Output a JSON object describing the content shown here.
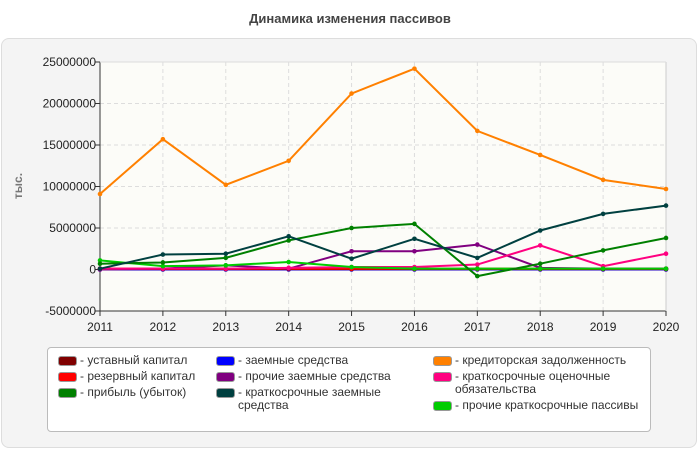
{
  "chart_data": {
    "type": "line",
    "title": "Динамика изменения пассивов",
    "ylabel": "тыс.",
    "xlabel": "",
    "x": [
      2011,
      2012,
      2013,
      2014,
      2015,
      2016,
      2017,
      2018,
      2019,
      2020
    ],
    "ylim": [
      -5000000,
      25000000
    ],
    "yticks": [
      "-5000000",
      "0",
      "5000000",
      "10000000",
      "15000000",
      "20000000",
      "25000000"
    ],
    "ytick_values": [
      -5000000,
      0,
      5000000,
      10000000,
      15000000,
      20000000,
      25000000
    ],
    "xticks": [
      "2011",
      "2012",
      "2013",
      "2014",
      "2015",
      "2016",
      "2017",
      "2018",
      "2019",
      "2020"
    ],
    "grid": true,
    "legend_placement": "bottom",
    "series": [
      {
        "name": "- уставный капитал",
        "color": "#800000",
        "values": [
          50000,
          50000,
          50000,
          50000,
          50000,
          50000,
          50000,
          50000,
          50000,
          50000
        ]
      },
      {
        "name": "- резервный капитал",
        "color": "#ff0000",
        "values": [
          100000,
          100000,
          100000,
          100000,
          100000,
          100000,
          100000,
          100000,
          100000,
          100000
        ]
      },
      {
        "name": "- прибыль (убыток)",
        "color": "#008000",
        "values": [
          700000,
          850000,
          1400000,
          3500000,
          5000000,
          5500000,
          -800000,
          700000,
          2300000,
          3800000
        ]
      },
      {
        "name": "- заемные средства",
        "color": "#0000ff",
        "values": [
          0,
          0,
          0,
          0,
          0,
          0,
          0,
          0,
          0,
          0
        ]
      },
      {
        "name": "- прочие заемные средства",
        "color": "#800080",
        "values": [
          0,
          100000,
          500000,
          100000,
          2200000,
          2200000,
          3000000,
          200000,
          100000,
          100000
        ]
      },
      {
        "name": "- краткосрочные заемные средства",
        "color": "#004040",
        "values": [
          100000,
          1800000,
          1900000,
          4000000,
          1300000,
          3700000,
          1400000,
          4700000,
          6700000,
          7700000
        ]
      },
      {
        "name": "- кредиторская задолженность",
        "color": "#ff8000",
        "values": [
          9100000,
          15700000,
          10200000,
          13100000,
          21200000,
          24200000,
          16700000,
          13800000,
          10800000,
          9700000
        ]
      },
      {
        "name": "- краткосрочные оценочные обязательства",
        "color": "#ff0080",
        "values": [
          100000,
          100000,
          100000,
          200000,
          300000,
          300000,
          600000,
          2900000,
          400000,
          1900000
        ]
      },
      {
        "name": "- прочие краткосрочные пассивы",
        "color": "#00cc00",
        "values": [
          1100000,
          400000,
          500000,
          900000,
          300000,
          100000,
          100000,
          100000,
          100000,
          100000
        ]
      }
    ]
  }
}
